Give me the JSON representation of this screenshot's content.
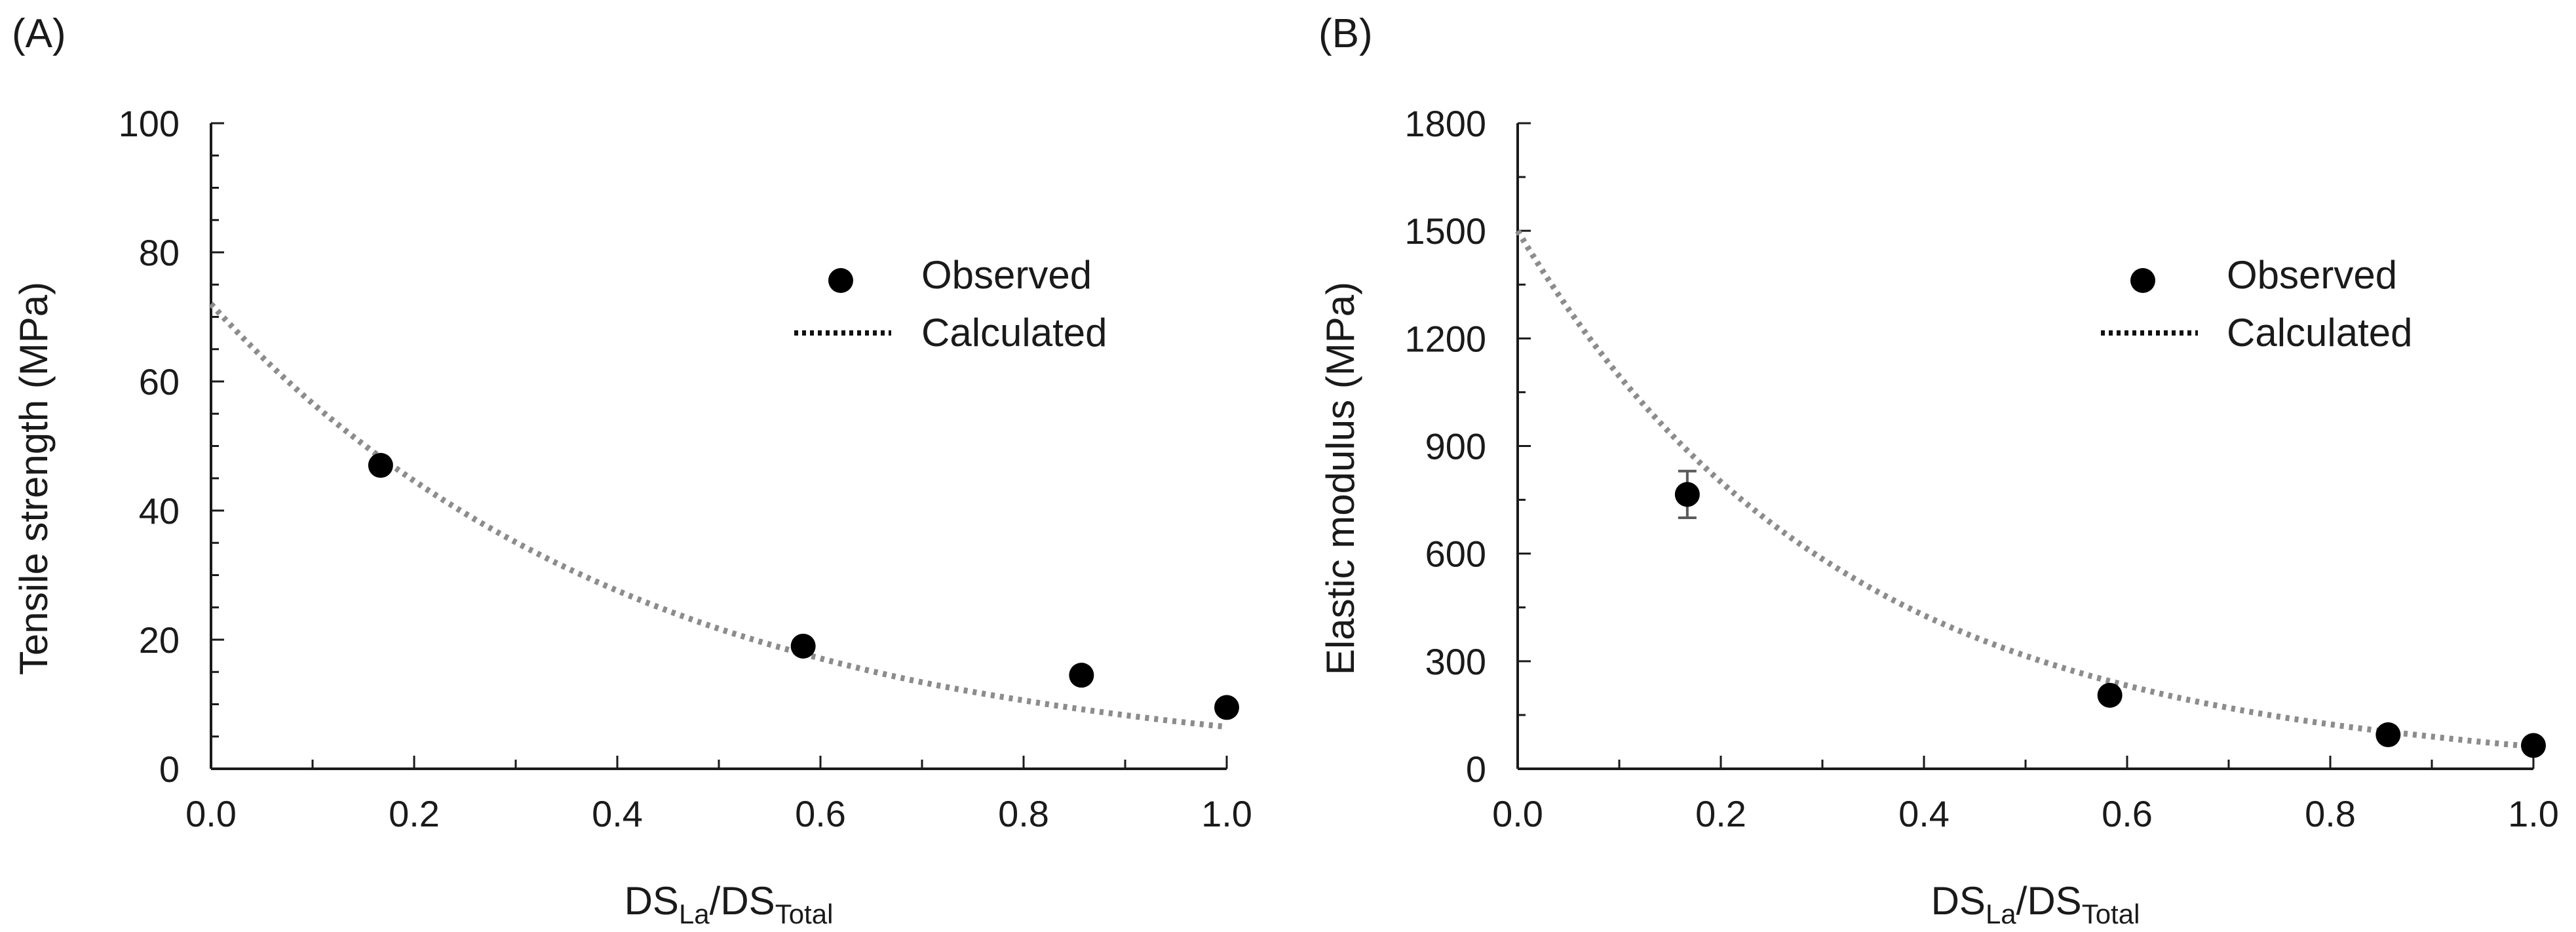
{
  "chart_data": [
    {
      "type": "scatter",
      "panel_label": "(A)",
      "xlabel_main": "DS",
      "xlabel_sub1": "La",
      "xlabel_sep": "/DS",
      "xlabel_sub2": "Total",
      "ylabel": "Tensile strength (MPa)",
      "xlim": [
        0.0,
        1.0
      ],
      "ylim": [
        0,
        100
      ],
      "xticks": [
        "0.0",
        "0.2",
        "0.4",
        "0.6",
        "0.8",
        "1.0"
      ],
      "xtick_values": [
        0.0,
        0.2,
        0.4,
        0.6,
        0.8,
        1.0
      ],
      "yticks": [
        "0",
        "20",
        "40",
        "60",
        "80",
        "100"
      ],
      "ytick_values": [
        0,
        20,
        40,
        60,
        80,
        100
      ],
      "x_minor_step": 0.1,
      "y_minor_step": 5,
      "legend": {
        "observed": "Observed",
        "calculated": "Calculated",
        "position": "top-right"
      },
      "series": [
        {
          "name": "Observed",
          "kind": "points",
          "x": [
            0.167,
            0.583,
            0.857,
            1.0
          ],
          "y": [
            47.0,
            19.0,
            14.5,
            9.5
          ],
          "yerr": [
            0,
            0,
            0,
            0
          ]
        },
        {
          "name": "Calculated",
          "kind": "dotted-line",
          "x": [
            0.0,
            0.1,
            0.2,
            0.3,
            0.4,
            0.5,
            0.6,
            0.7,
            0.8,
            0.9,
            1.0
          ],
          "y": [
            72.0,
            56.6,
            44.6,
            35.1,
            27.6,
            21.7,
            17.1,
            13.4,
            10.6,
            8.3,
            6.5
          ]
        }
      ]
    },
    {
      "type": "scatter",
      "panel_label": "(B)",
      "xlabel_main": "DS",
      "xlabel_sub1": "La",
      "xlabel_sep": "/DS",
      "xlabel_sub2": "Total",
      "ylabel": "Elastic modulus (MPa)",
      "xlim": [
        0.0,
        1.0
      ],
      "ylim": [
        0,
        1800
      ],
      "xticks": [
        "0.0",
        "0.2",
        "0.4",
        "0.6",
        "0.8",
        "1.0"
      ],
      "xtick_values": [
        0.0,
        0.2,
        0.4,
        0.6,
        0.8,
        1.0
      ],
      "yticks": [
        "0",
        "300",
        "600",
        "900",
        "1200",
        "1500",
        "1800"
      ],
      "ytick_values": [
        0,
        300,
        600,
        900,
        1200,
        1500,
        1800
      ],
      "x_minor_step": 0.1,
      "y_minor_step": 150,
      "legend": {
        "observed": "Observed",
        "calculated": "Calculated",
        "position": "top-right"
      },
      "series": [
        {
          "name": "Observed",
          "kind": "points",
          "x": [
            0.167,
            0.583,
            0.857,
            1.0
          ],
          "y": [
            765,
            205,
            95,
            65
          ],
          "yerr": [
            65,
            0,
            0,
            0
          ]
        },
        {
          "name": "Calculated",
          "kind": "dotted-line",
          "x": [
            0.0,
            0.1,
            0.2,
            0.3,
            0.4,
            0.5,
            0.6,
            0.7,
            0.8,
            0.9,
            1.0
          ],
          "y": [
            1500,
            1095,
            800,
            585,
            428,
            315,
            232,
            170,
            124,
            90,
            62
          ]
        }
      ]
    }
  ]
}
